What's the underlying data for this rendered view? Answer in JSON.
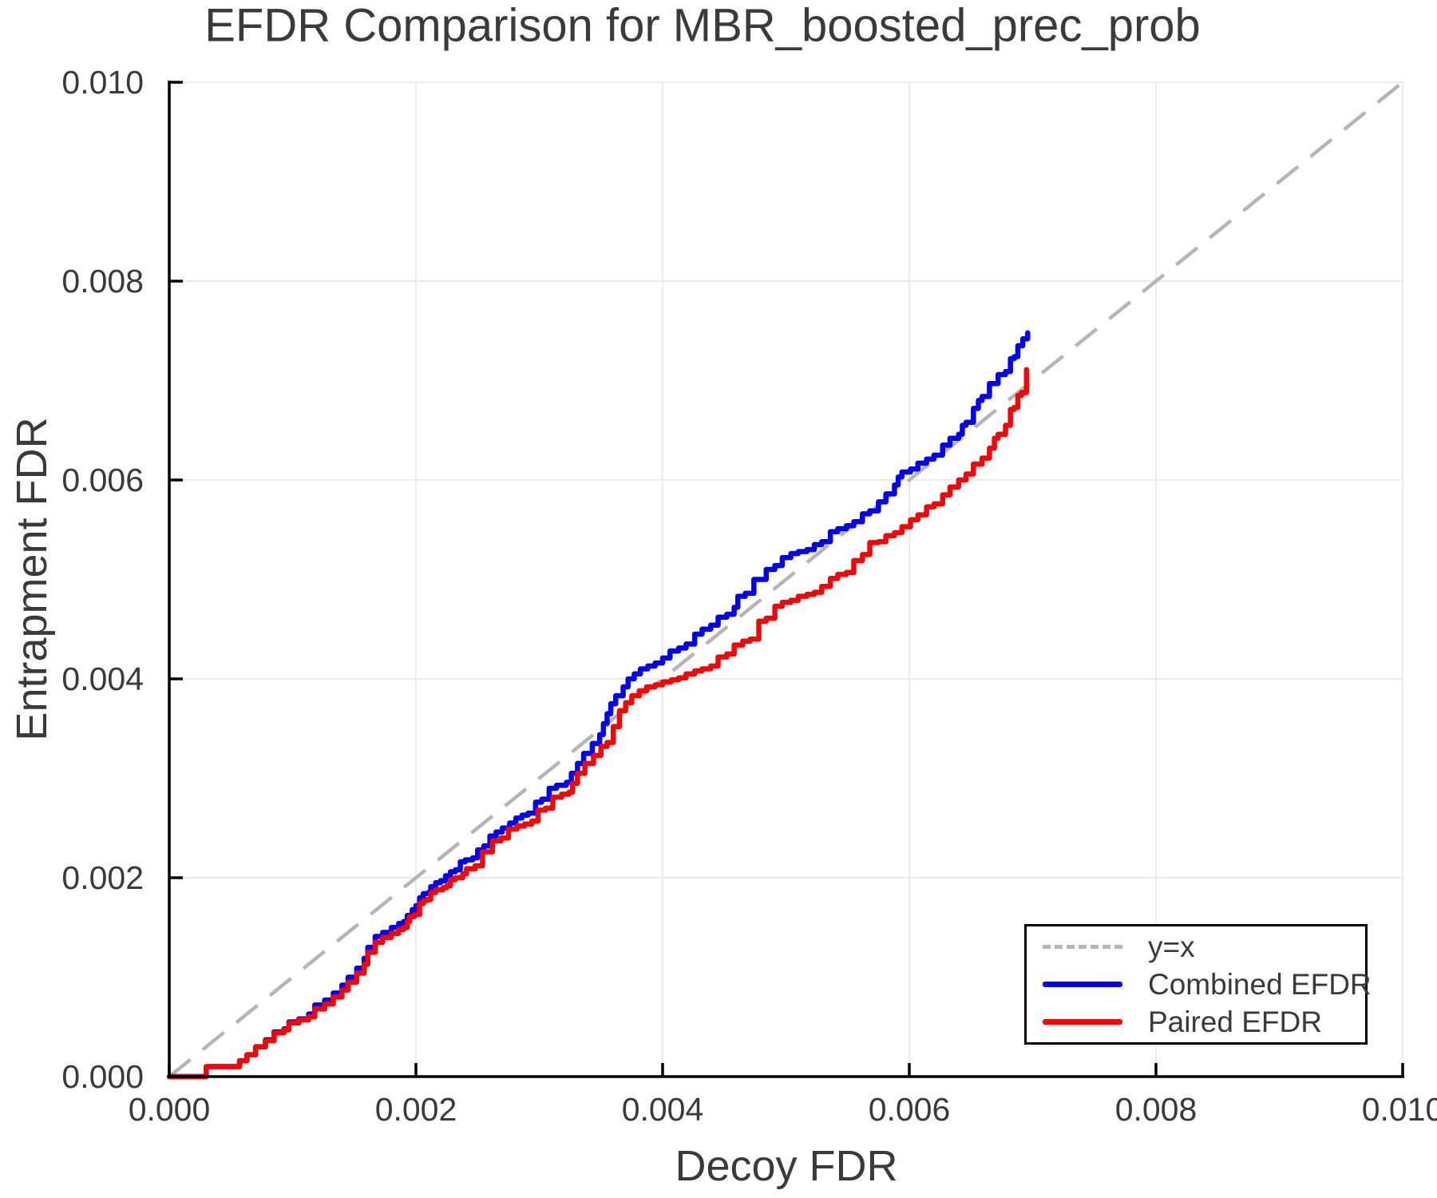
{
  "figure": {
    "kind": "matplotlib-style line plot"
  },
  "colors": {
    "combined": "#0202f2",
    "paired": "#f50505",
    "identity": "#b5b5b5",
    "grid": "#ebebeb",
    "axis": "#000000",
    "text": "#3a3a3a",
    "background": "#ffffff"
  },
  "legend": {
    "position": "lower right",
    "items": [
      {
        "label": "y=x",
        "style": "dashed",
        "color_key": "identity"
      },
      {
        "label": "Combined EFDR",
        "style": "solid",
        "color_key": "combined"
      },
      {
        "label": "Paired EFDR",
        "style": "solid",
        "color_key": "paired"
      }
    ]
  },
  "chart_data": {
    "type": "line",
    "title": "EFDR Comparison for MBR_boosted_prec_prob",
    "xlabel": "Decoy FDR",
    "ylabel": "Entrapment FDR",
    "xlim": [
      0,
      0.01
    ],
    "ylim": [
      0,
      0.01
    ],
    "grid": true,
    "legend_position": "lower right",
    "xticks": [
      {
        "v": 0.0,
        "label": "0.000"
      },
      {
        "v": 0.002,
        "label": "0.002"
      },
      {
        "v": 0.004,
        "label": "0.004"
      },
      {
        "v": 0.006,
        "label": "0.006"
      },
      {
        "v": 0.008,
        "label": "0.008"
      },
      {
        "v": 0.01,
        "label": "0.010"
      }
    ],
    "yticks": [
      {
        "v": 0.0,
        "label": "0.000"
      },
      {
        "v": 0.002,
        "label": "0.002"
      },
      {
        "v": 0.004,
        "label": "0.004"
      },
      {
        "v": 0.006,
        "label": "0.006"
      },
      {
        "v": 0.008,
        "label": "0.008"
      },
      {
        "v": 0.01,
        "label": "0.010"
      }
    ],
    "identity_line": {
      "label": "y=x",
      "from": [
        0,
        0
      ],
      "to": [
        0.01,
        0.01
      ],
      "style": "dashed"
    },
    "series": [
      {
        "name": "Combined EFDR",
        "color_key": "combined",
        "points": [
          [
            0,
            0
          ],
          [
            0.0003,
            0
          ],
          [
            0.0003,
            0.0001
          ],
          [
            0.00055,
            0.0001
          ],
          [
            0.00057,
            0.00016
          ],
          [
            0.00063,
            0.00022
          ],
          [
            0.0007,
            0.0003
          ],
          [
            0.00078,
            0.00037
          ],
          [
            0.00085,
            0.00045
          ],
          [
            0.00093,
            0.00048
          ],
          [
            0.00097,
            0.00055
          ],
          [
            0.00105,
            0.00058
          ],
          [
            0.00113,
            0.00063
          ],
          [
            0.00118,
            0.00072
          ],
          [
            0.00126,
            0.00077
          ],
          [
            0.00133,
            0.00084
          ],
          [
            0.0014,
            0.00092
          ],
          [
            0.00145,
            0.001
          ],
          [
            0.00152,
            0.00109
          ],
          [
            0.00158,
            0.00119
          ],
          [
            0.00161,
            0.0013
          ],
          [
            0.00167,
            0.00141
          ],
          [
            0.00173,
            0.00145
          ],
          [
            0.0018,
            0.0015
          ],
          [
            0.00186,
            0.00154
          ],
          [
            0.0019,
            0.00156
          ],
          [
            0.00193,
            0.00162
          ],
          [
            0.00197,
            0.00168
          ],
          [
            0.002,
            0.00172
          ],
          [
            0.00203,
            0.0018
          ],
          [
            0.00206,
            0.00184
          ],
          [
            0.0021,
            0.00185
          ],
          [
            0.00212,
            0.00191
          ],
          [
            0.00216,
            0.00195
          ],
          [
            0.0022,
            0.00197
          ],
          [
            0.00224,
            0.00202
          ],
          [
            0.00228,
            0.00206
          ],
          [
            0.00232,
            0.00208
          ],
          [
            0.00236,
            0.00216
          ],
          [
            0.0024,
            0.00218
          ],
          [
            0.00246,
            0.0022
          ],
          [
            0.0025,
            0.00228
          ],
          [
            0.00255,
            0.00232
          ],
          [
            0.0026,
            0.00242
          ],
          [
            0.00265,
            0.00246
          ],
          [
            0.0027,
            0.0025
          ],
          [
            0.00276,
            0.00255
          ],
          [
            0.00281,
            0.0026
          ],
          [
            0.00286,
            0.00263
          ],
          [
            0.00291,
            0.00265
          ],
          [
            0.00297,
            0.00276
          ],
          [
            0.00302,
            0.00279
          ],
          [
            0.00308,
            0.0029
          ],
          [
            0.00314,
            0.00293
          ],
          [
            0.00322,
            0.00296
          ],
          [
            0.00326,
            0.00305
          ],
          [
            0.00331,
            0.00315
          ],
          [
            0.00336,
            0.00325
          ],
          [
            0.00343,
            0.00335
          ],
          [
            0.00349,
            0.00344
          ],
          [
            0.00352,
            0.00355
          ],
          [
            0.00355,
            0.00365
          ],
          [
            0.00358,
            0.00375
          ],
          [
            0.00362,
            0.00383
          ],
          [
            0.00368,
            0.00392
          ],
          [
            0.00372,
            0.004
          ],
          [
            0.00377,
            0.00405
          ],
          [
            0.00382,
            0.0041
          ],
          [
            0.00388,
            0.00413
          ],
          [
            0.00394,
            0.00416
          ],
          [
            0.004,
            0.00421
          ],
          [
            0.00406,
            0.00428
          ],
          [
            0.00413,
            0.00431
          ],
          [
            0.00419,
            0.00435
          ],
          [
            0.00426,
            0.00445
          ],
          [
            0.00432,
            0.0045
          ],
          [
            0.00439,
            0.00454
          ],
          [
            0.00445,
            0.00462
          ],
          [
            0.00452,
            0.00465
          ],
          [
            0.00458,
            0.00472
          ],
          [
            0.00461,
            0.00483
          ],
          [
            0.00467,
            0.00486
          ],
          [
            0.00474,
            0.005
          ],
          [
            0.00484,
            0.0051
          ],
          [
            0.00491,
            0.00514
          ],
          [
            0.00497,
            0.00522
          ],
          [
            0.00504,
            0.00526
          ],
          [
            0.0051,
            0.00528
          ],
          [
            0.00517,
            0.0053
          ],
          [
            0.00523,
            0.00535
          ],
          [
            0.00529,
            0.00538
          ],
          [
            0.00536,
            0.00548
          ],
          [
            0.00542,
            0.00551
          ],
          [
            0.00549,
            0.00554
          ],
          [
            0.00555,
            0.00558
          ],
          [
            0.00562,
            0.00566
          ],
          [
            0.00568,
            0.00569
          ],
          [
            0.00575,
            0.00578
          ],
          [
            0.00581,
            0.00586
          ],
          [
            0.00588,
            0.00595
          ],
          [
            0.00591,
            0.00603
          ],
          [
            0.00594,
            0.00608
          ],
          [
            0.00601,
            0.00611
          ],
          [
            0.00607,
            0.00617
          ],
          [
            0.00614,
            0.00621
          ],
          [
            0.0062,
            0.00625
          ],
          [
            0.00627,
            0.00635
          ],
          [
            0.00633,
            0.00642
          ],
          [
            0.0064,
            0.00646
          ],
          [
            0.00643,
            0.00655
          ],
          [
            0.00646,
            0.00658
          ],
          [
            0.00652,
            0.00672
          ],
          [
            0.00656,
            0.0068
          ],
          [
            0.00659,
            0.00684
          ],
          [
            0.00665,
            0.00697
          ],
          [
            0.00672,
            0.00706
          ],
          [
            0.00678,
            0.00709
          ],
          [
            0.00682,
            0.00722
          ],
          [
            0.00685,
            0.00724
          ],
          [
            0.00688,
            0.00735
          ],
          [
            0.00692,
            0.00742
          ],
          [
            0.00696,
            0.00748
          ]
        ]
      },
      {
        "name": "Paired EFDR",
        "color_key": "paired",
        "points": [
          [
            0,
            0
          ],
          [
            0.0003,
            0
          ],
          [
            0.0003,
            0.0001
          ],
          [
            0.00055,
            0.0001
          ],
          [
            0.00057,
            0.00016
          ],
          [
            0.00063,
            0.00022
          ],
          [
            0.0007,
            0.0003
          ],
          [
            0.00078,
            0.00036
          ],
          [
            0.00085,
            0.00044
          ],
          [
            0.00093,
            0.00047
          ],
          [
            0.00097,
            0.00054
          ],
          [
            0.00105,
            0.00057
          ],
          [
            0.00113,
            0.0006
          ],
          [
            0.00118,
            0.00068
          ],
          [
            0.00126,
            0.00073
          ],
          [
            0.00133,
            0.0008
          ],
          [
            0.0014,
            0.00087
          ],
          [
            0.00145,
            0.00095
          ],
          [
            0.00152,
            0.00104
          ],
          [
            0.00158,
            0.00113
          ],
          [
            0.00161,
            0.00125
          ],
          [
            0.00167,
            0.00135
          ],
          [
            0.00173,
            0.0014
          ],
          [
            0.0018,
            0.00144
          ],
          [
            0.00186,
            0.00148
          ],
          [
            0.0019,
            0.0015
          ],
          [
            0.00193,
            0.00156
          ],
          [
            0.00195,
            0.00161
          ],
          [
            0.00199,
            0.00163
          ],
          [
            0.00203,
            0.00174
          ],
          [
            0.00206,
            0.00177
          ],
          [
            0.00209,
            0.00178
          ],
          [
            0.00212,
            0.00185
          ],
          [
            0.00216,
            0.00188
          ],
          [
            0.00222,
            0.0019
          ],
          [
            0.00225,
            0.00192
          ],
          [
            0.00228,
            0.00198
          ],
          [
            0.00232,
            0.002
          ],
          [
            0.00238,
            0.00204
          ],
          [
            0.00241,
            0.00209
          ],
          [
            0.00248,
            0.00212
          ],
          [
            0.00254,
            0.00226
          ],
          [
            0.00262,
            0.00237
          ],
          [
            0.00269,
            0.0024
          ],
          [
            0.00275,
            0.00249
          ],
          [
            0.00282,
            0.00252
          ],
          [
            0.00288,
            0.00254
          ],
          [
            0.00294,
            0.00257
          ],
          [
            0.00299,
            0.00268
          ],
          [
            0.00305,
            0.0027
          ],
          [
            0.00311,
            0.00281
          ],
          [
            0.00318,
            0.00284
          ],
          [
            0.00324,
            0.00286
          ],
          [
            0.00327,
            0.00295
          ],
          [
            0.00331,
            0.00305
          ],
          [
            0.00337,
            0.00315
          ],
          [
            0.00344,
            0.00323
          ],
          [
            0.0035,
            0.00332
          ],
          [
            0.00355,
            0.00336
          ],
          [
            0.0036,
            0.00352
          ],
          [
            0.00365,
            0.00368
          ],
          [
            0.0037,
            0.00376
          ],
          [
            0.00375,
            0.00383
          ],
          [
            0.00381,
            0.00388
          ],
          [
            0.00387,
            0.00392
          ],
          [
            0.00394,
            0.00394
          ],
          [
            0.004,
            0.00397
          ],
          [
            0.00407,
            0.00399
          ],
          [
            0.00413,
            0.00401
          ],
          [
            0.00419,
            0.00405
          ],
          [
            0.00426,
            0.00408
          ],
          [
            0.00432,
            0.0041
          ],
          [
            0.00439,
            0.00413
          ],
          [
            0.00445,
            0.00422
          ],
          [
            0.00452,
            0.00425
          ],
          [
            0.00458,
            0.00434
          ],
          [
            0.00465,
            0.00438
          ],
          [
            0.00471,
            0.0044
          ],
          [
            0.00478,
            0.00458
          ],
          [
            0.00484,
            0.00461
          ],
          [
            0.00491,
            0.00473
          ],
          [
            0.00497,
            0.00477
          ],
          [
            0.00504,
            0.00479
          ],
          [
            0.0051,
            0.00483
          ],
          [
            0.00517,
            0.00485
          ],
          [
            0.00523,
            0.00487
          ],
          [
            0.00529,
            0.00493
          ],
          [
            0.00536,
            0.00501
          ],
          [
            0.00542,
            0.00505
          ],
          [
            0.00549,
            0.00507
          ],
          [
            0.00555,
            0.00519
          ],
          [
            0.00562,
            0.00525
          ],
          [
            0.00568,
            0.00537
          ],
          [
            0.00575,
            0.00538
          ],
          [
            0.00581,
            0.00544
          ],
          [
            0.00588,
            0.00547
          ],
          [
            0.00594,
            0.00553
          ],
          [
            0.00601,
            0.0056
          ],
          [
            0.00607,
            0.00565
          ],
          [
            0.00614,
            0.00573
          ],
          [
            0.0062,
            0.00576
          ],
          [
            0.00627,
            0.00585
          ],
          [
            0.00633,
            0.00593
          ],
          [
            0.0064,
            0.006
          ],
          [
            0.00646,
            0.00606
          ],
          [
            0.00652,
            0.00616
          ],
          [
            0.00659,
            0.00622
          ],
          [
            0.00665,
            0.00632
          ],
          [
            0.00669,
            0.00642
          ],
          [
            0.00672,
            0.00646
          ],
          [
            0.00678,
            0.00655
          ],
          [
            0.00682,
            0.00671
          ],
          [
            0.00685,
            0.00673
          ],
          [
            0.00688,
            0.00685
          ],
          [
            0.00691,
            0.00688
          ],
          [
            0.00695,
            0.00711
          ]
        ]
      }
    ]
  }
}
